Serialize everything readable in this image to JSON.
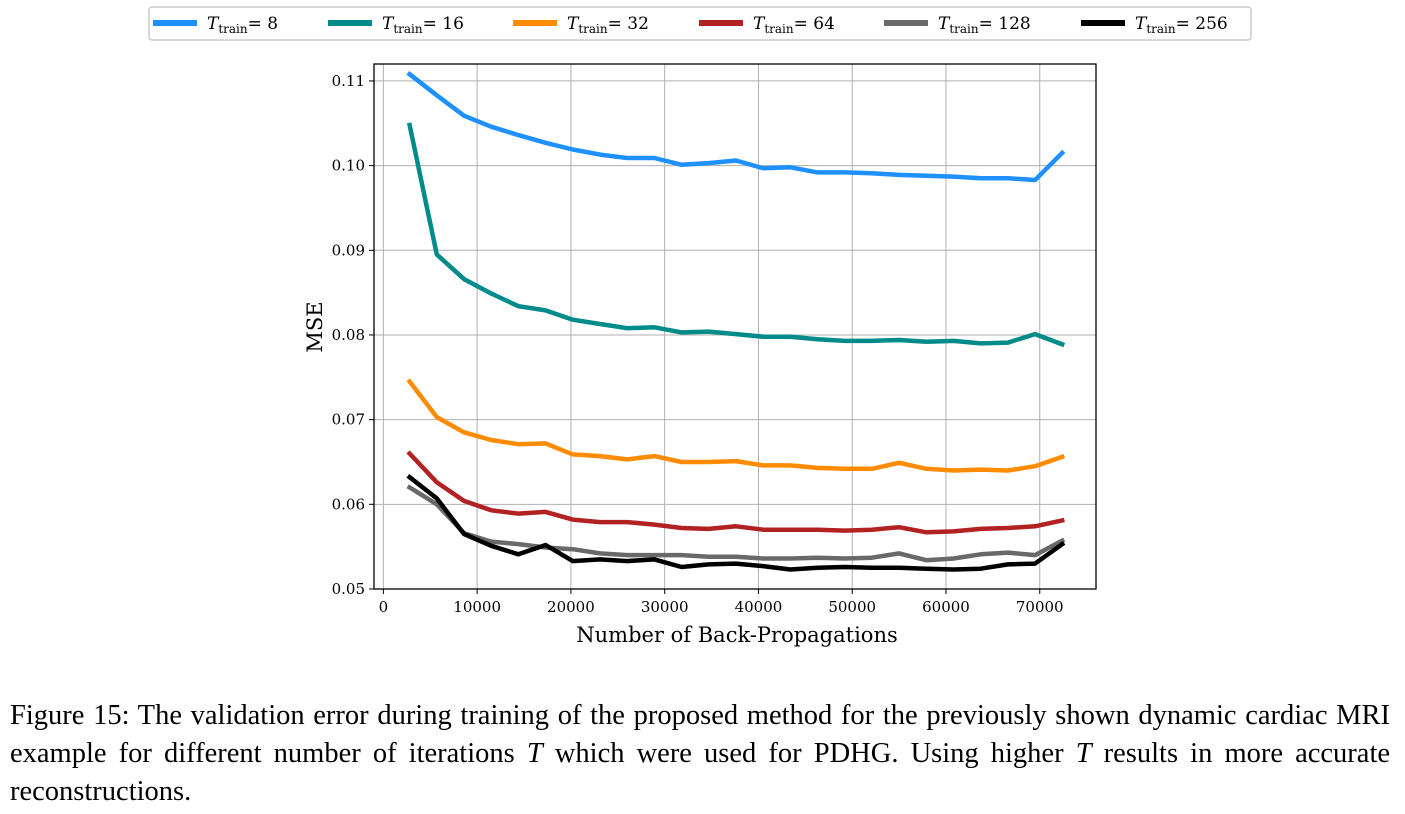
{
  "chart_data": {
    "type": "line",
    "xlabel": "Number of Back-Propagations",
    "ylabel": "MSE",
    "xlim": [
      -1000,
      76000
    ],
    "ylim": [
      0.05,
      0.112
    ],
    "xticks": [
      0,
      10000,
      20000,
      30000,
      40000,
      50000,
      60000,
      70000
    ],
    "xtick_labels": [
      "0",
      "10000",
      "20000",
      "30000",
      "40000",
      "50000",
      "60000",
      "70000"
    ],
    "yticks": [
      0.05,
      0.06,
      0.07,
      0.08,
      0.09,
      0.1,
      0.11
    ],
    "ytick_labels": [
      "0.05",
      "0.06",
      "0.07",
      "0.08",
      "0.09",
      "0.10",
      "0.11"
    ],
    "grid": true,
    "legend_position": "top-center",
    "x": [
      2800,
      5700,
      8600,
      11500,
      14400,
      17300,
      20200,
      23100,
      26000,
      28900,
      31800,
      34700,
      37600,
      40500,
      43400,
      46300,
      49200,
      52100,
      55000,
      57900,
      60800,
      63700,
      66600,
      69500,
      72400
    ],
    "series": [
      {
        "name_var": "T",
        "name_sub": "train",
        "name_value": "= 8",
        "color": "#1e90ff",
        "values": [
          0.1108,
          0.1083,
          0.1059,
          0.1046,
          0.1036,
          0.1027,
          0.1019,
          0.1013,
          0.1009,
          0.1009,
          0.1001,
          0.1003,
          0.1006,
          0.0997,
          0.0998,
          0.0992,
          0.0992,
          0.0991,
          0.0989,
          0.0988,
          0.0987,
          0.0985,
          0.0985,
          0.0983,
          0.1015
        ]
      },
      {
        "name_var": "T",
        "name_sub": "train",
        "name_value": "= 16",
        "color": "#008b8b",
        "values": [
          0.1048,
          0.0895,
          0.0866,
          0.0849,
          0.0834,
          0.0829,
          0.0818,
          0.0813,
          0.0808,
          0.0809,
          0.0803,
          0.0804,
          0.0801,
          0.0798,
          0.0798,
          0.0795,
          0.0793,
          0.0793,
          0.0794,
          0.0792,
          0.0793,
          0.079,
          0.0791,
          0.0801,
          0.0789
        ]
      },
      {
        "name_var": "T",
        "name_sub": "train",
        "name_value": "= 32",
        "color": "#ff8c00",
        "values": [
          0.0745,
          0.0703,
          0.0685,
          0.0676,
          0.0671,
          0.0672,
          0.0659,
          0.0657,
          0.0653,
          0.0657,
          0.065,
          0.065,
          0.0651,
          0.0646,
          0.0646,
          0.0643,
          0.0642,
          0.0642,
          0.0649,
          0.0642,
          0.064,
          0.0641,
          0.064,
          0.0645,
          0.0656
        ]
      },
      {
        "name_var": "T",
        "name_sub": "train",
        "name_value": "= 64",
        "color": "#b22222",
        "values": [
          0.066,
          0.0626,
          0.0604,
          0.0593,
          0.0589,
          0.0591,
          0.0582,
          0.0579,
          0.0579,
          0.0576,
          0.0572,
          0.0571,
          0.0574,
          0.057,
          0.057,
          0.057,
          0.0569,
          0.057,
          0.0573,
          0.0567,
          0.0568,
          0.0571,
          0.0572,
          0.0574,
          0.0581
        ]
      },
      {
        "name_var": "T",
        "name_sub": "train",
        "name_value": "= 128",
        "color": "#696969",
        "values": [
          0.062,
          0.06,
          0.0566,
          0.0556,
          0.0553,
          0.0549,
          0.0547,
          0.0542,
          0.054,
          0.054,
          0.054,
          0.0538,
          0.0538,
          0.0536,
          0.0536,
          0.0537,
          0.0536,
          0.0537,
          0.0542,
          0.0534,
          0.0536,
          0.0541,
          0.0543,
          0.054,
          0.0557
        ]
      },
      {
        "name_var": "T",
        "name_sub": "train",
        "name_value": "= 256",
        "color": "#000000",
        "values": [
          0.0632,
          0.0607,
          0.0565,
          0.0551,
          0.0541,
          0.0552,
          0.0533,
          0.0535,
          0.0533,
          0.0535,
          0.0526,
          0.0529,
          0.053,
          0.0527,
          0.0523,
          0.0525,
          0.0526,
          0.0525,
          0.0525,
          0.0524,
          0.0523,
          0.0524,
          0.0529,
          0.053,
          0.0553
        ]
      }
    ]
  },
  "caption": {
    "label": "Figure 15:",
    "text_1": "The validation error during training of the proposed method for the previously shown dynamic cardiac MRI example for different number of iterations",
    "var_1": "T",
    "text_2": "which were used for PDHG. Using higher",
    "var_2": "T",
    "text_3": "results in more accurate reconstructions."
  }
}
